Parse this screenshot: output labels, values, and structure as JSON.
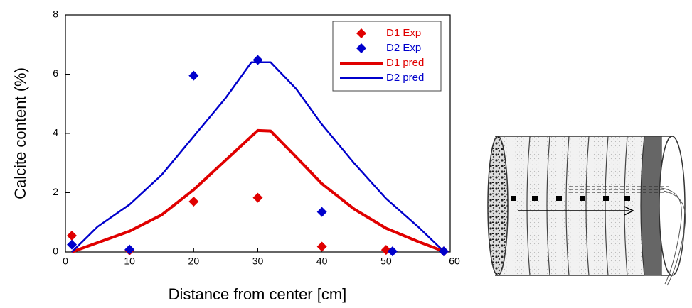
{
  "chart_data": {
    "type": "scatter",
    "x_label": "Distance from center [cm]",
    "y_label": "Calcite content (%)",
    "xlim": [
      0,
      60
    ],
    "xticks": [
      0,
      10,
      20,
      30,
      40,
      50,
      60
    ],
    "ylim": [
      0,
      8
    ],
    "yticks": [
      0,
      2,
      4,
      6,
      8
    ],
    "legend": "upper right",
    "series": [
      {
        "name": "D1 Exp",
        "type": "scatter",
        "color": "#e00000",
        "x": [
          1,
          10,
          20,
          30,
          40,
          50,
          59
        ],
        "values": [
          0.55,
          0.05,
          1.7,
          1.83,
          0.18,
          0.07,
          0.02
        ]
      },
      {
        "name": "D2 Exp",
        "type": "scatter",
        "color": "#0000cc",
        "x": [
          1,
          10,
          20,
          30,
          40,
          51,
          59
        ],
        "values": [
          0.25,
          0.08,
          5.95,
          6.48,
          1.35,
          0.02,
          0.02
        ]
      },
      {
        "name": "D1 pred",
        "type": "line",
        "color": "#e00000",
        "x": [
          1,
          10,
          15,
          20,
          25,
          30,
          32,
          36,
          40,
          45,
          50,
          55,
          59
        ],
        "values": [
          0,
          0.7,
          1.25,
          2.1,
          3.1,
          4.1,
          4.08,
          3.2,
          2.3,
          1.45,
          0.8,
          0.35,
          0.02
        ]
      },
      {
        "name": "D2 pred",
        "type": "line",
        "color": "#0000cc",
        "x": [
          1,
          5,
          10,
          15,
          20,
          25,
          29,
          32,
          36,
          40,
          45,
          50,
          55,
          59
        ],
        "values": [
          0,
          0.85,
          1.6,
          2.6,
          3.9,
          5.2,
          6.4,
          6.4,
          5.5,
          4.3,
          3.0,
          1.8,
          0.85,
          0.02
        ]
      }
    ]
  }
}
